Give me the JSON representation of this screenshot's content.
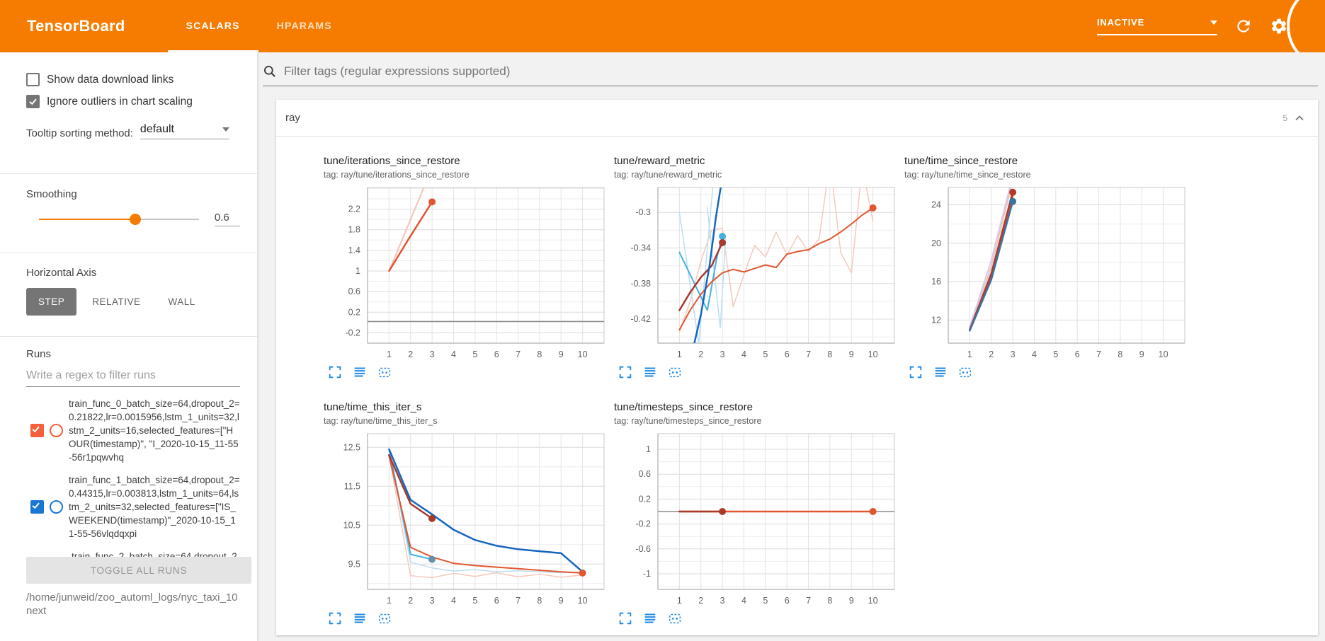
{
  "header": {
    "title": "TensorBoard",
    "tabs": [
      {
        "label": "SCALARS"
      },
      {
        "label": "HPARAMS"
      }
    ],
    "active_tab": "SCALARS",
    "status_dropdown": "INACTIVE"
  },
  "sidebar": {
    "checkboxes": [
      {
        "label": "Show data download links",
        "checked": false
      },
      {
        "label": "Ignore outliers in chart scaling",
        "checked": true
      }
    ],
    "tooltip_sorting_label": "Tooltip sorting method:",
    "tooltip_sorting_value": "default",
    "smoothing_label": "Smoothing",
    "smoothing_value": "0.6",
    "smoothing_percent": 60,
    "horizontal_axis_label": "Horizontal Axis",
    "axis_options": [
      "STEP",
      "RELATIVE",
      "WALL"
    ],
    "axis_selected": "STEP",
    "runs_label": "Runs",
    "runs_filter_placeholder": "Write a regex to filter runs",
    "runs": [
      {
        "name": "train_func_0_batch_size=64,dropout_2=0.21822,lr=0.0015956,lstm_1_units=32,lstm_2_units=16,selected_features=[\"HOUR(timestamp)\", \"I_2020-10-15_11-55-56r1pqwvhq",
        "checked": true,
        "color": "#f4603c",
        "clipped": false
      },
      {
        "name": "train_func_1_batch_size=64,dropout_2=0.44315,lr=0.003813,lstm_1_units=64,lstm_2_units=32,selected_features=[\"IS_WEEKEND(timestamp)\"_2020-10-15_11-55-56vlqdqxpi",
        "checked": true,
        "color": "#1976d2",
        "clipped": false
      },
      {
        "name": "train_func_2_batch_size=64,dropout_2=",
        "checked": true,
        "clipped": true
      }
    ],
    "toggle_all_label": "TOGGLE ALL RUNS",
    "log_path": "/home/junweid/zoo_automl_logs/nyc_taxi_10next"
  },
  "main": {
    "filter_placeholder": "Filter tags (regular expressions supported)",
    "section_name": "ray",
    "section_count": "5"
  },
  "chart_data": [
    {
      "type": "line",
      "title": "tune/iterations_since_restore",
      "tag": "tag: ray/tune/iterations_since_restore",
      "xlim": [
        0,
        11
      ],
      "x_ticks": [
        1,
        2,
        3,
        4,
        5,
        6,
        7,
        8,
        9,
        10
      ],
      "ylim": [
        -0.4,
        2.62
      ],
      "yticks": [
        2.2,
        1.8,
        1.4,
        1,
        0.6,
        0.2,
        -0.2
      ],
      "ytick_labels": [
        "2.2",
        "1.8",
        "1.4",
        "1",
        "0.6",
        "0.2",
        "-0.2"
      ],
      "series": [
        {
          "name": "train_func_0 raw",
          "color": "#f3c3b6",
          "width": 2,
          "points": [
            [
              1,
              1
            ],
            [
              2,
              2
            ],
            [
              3,
              3
            ]
          ]
        },
        {
          "name": "flat baseline",
          "color": "#8a8a8a",
          "width": 1.5,
          "points": [
            [
              0,
              0.02
            ],
            [
              11,
              0.02
            ]
          ]
        },
        {
          "name": "train_func_0 smoothed",
          "color": "#e2552f",
          "width": 2.5,
          "dot": true,
          "points": [
            [
              1,
              1
            ],
            [
              2,
              1.68
            ],
            [
              3,
              2.34
            ]
          ]
        }
      ]
    },
    {
      "type": "line",
      "title": "tune/reward_metric",
      "tag": "tag: ray/tune/reward_metric",
      "xlim": [
        0,
        11
      ],
      "x_ticks": [
        1,
        2,
        3,
        4,
        5,
        6,
        7,
        8,
        9,
        10
      ],
      "ylim": [
        -0.447,
        -0.272
      ],
      "yticks": [
        -0.3,
        -0.34,
        -0.38,
        -0.42
      ],
      "ytick_labels": [
        "-0.3",
        "-0.34",
        "-0.38",
        "-0.42"
      ],
      "series": [
        {
          "name": "raw pink",
          "color": "#f4c9bc",
          "width": 1.5,
          "points": [
            [
              1,
              -0.435
            ],
            [
              1.5,
              -0.4
            ],
            [
              2,
              -0.355
            ],
            [
              2.5,
              -0.32
            ],
            [
              3,
              -0.318
            ],
            [
              3.5,
              -0.406
            ],
            [
              4,
              -0.37
            ],
            [
              4.5,
              -0.337
            ],
            [
              5,
              -0.35
            ],
            [
              5.5,
              -0.322
            ],
            [
              6,
              -0.348
            ],
            [
              6.5,
              -0.326
            ],
            [
              7,
              -0.344
            ],
            [
              7.5,
              -0.33
            ],
            [
              8,
              -0.242
            ],
            [
              8.5,
              -0.345
            ],
            [
              9,
              -0.368
            ],
            [
              9.5,
              -0.248
            ],
            [
              10,
              -0.31
            ]
          ]
        },
        {
          "name": "raw light blue a",
          "color": "#b9def3",
          "width": 1.5,
          "points": [
            [
              1,
              -0.3
            ],
            [
              1.9,
              -0.447
            ],
            [
              2.6,
              -0.26
            ]
          ]
        },
        {
          "name": "raw light blue b",
          "color": "#b9def3",
          "width": 1.5,
          "points": [
            [
              2.3,
              -0.295
            ],
            [
              2.9,
              -0.43
            ],
            [
              3.15,
              -0.33
            ]
          ]
        },
        {
          "name": "cyan",
          "color": "#42b1e0",
          "width": 2,
          "dot": true,
          "points": [
            [
              1,
              -0.345
            ],
            [
              1.9,
              -0.39
            ],
            [
              2.3,
              -0.41
            ],
            [
              2.75,
              -0.35
            ],
            [
              3,
              -0.327
            ]
          ]
        },
        {
          "name": "orange smoothed",
          "color": "#e2552f",
          "width": 2,
          "dot": true,
          "points": [
            [
              1,
              -0.432
            ],
            [
              1.5,
              -0.41
            ],
            [
              2,
              -0.392
            ],
            [
              2.5,
              -0.378
            ],
            [
              3,
              -0.368
            ],
            [
              3.5,
              -0.364
            ],
            [
              4,
              -0.367
            ],
            [
              4.5,
              -0.363
            ],
            [
              5,
              -0.359
            ],
            [
              5.5,
              -0.362
            ],
            [
              6,
              -0.347
            ],
            [
              6.5,
              -0.344
            ],
            [
              7,
              -0.342
            ],
            [
              7.5,
              -0.335
            ],
            [
              8,
              -0.33
            ],
            [
              8.5,
              -0.322
            ],
            [
              9,
              -0.313
            ],
            [
              9.5,
              -0.303
            ],
            [
              10,
              -0.295
            ]
          ]
        },
        {
          "name": "dark red smoothed",
          "color": "#a8392b",
          "width": 2.5,
          "dot": true,
          "points": [
            [
              1,
              -0.41
            ],
            [
              1.5,
              -0.39
            ],
            [
              2,
              -0.373
            ],
            [
              2.5,
              -0.36
            ],
            [
              3,
              -0.334
            ]
          ]
        },
        {
          "name": "blue smoothed",
          "color": "#1565c0",
          "width": 2.5,
          "points": [
            [
              1,
              -0.52
            ],
            [
              2,
              -0.415
            ],
            [
              2.4,
              -0.36
            ],
            [
              2.7,
              -0.305
            ],
            [
              3,
              -0.26
            ]
          ]
        }
      ]
    },
    {
      "type": "line",
      "title": "tune/time_since_restore",
      "tag": "tag: ray/tune/time_since_restore",
      "xlim": [
        0,
        11
      ],
      "x_ticks": [
        1,
        2,
        3,
        4,
        5,
        6,
        7,
        8,
        9,
        10
      ],
      "ylim": [
        9.6,
        25.8
      ],
      "yticks": [
        24,
        20,
        16,
        12
      ],
      "ytick_labels": [
        "24",
        "20",
        "16",
        "12"
      ],
      "series": [
        {
          "name": "raw lavender",
          "color": "#d5cbe9",
          "width": 2,
          "points": [
            [
              1,
              11.3
            ],
            [
              2,
              18.2
            ],
            [
              3,
              27
            ]
          ]
        },
        {
          "name": "raw pink",
          "color": "#f3c3b6",
          "width": 2,
          "points": [
            [
              1,
              11
            ],
            [
              2,
              17.6
            ],
            [
              3,
              26.5
            ]
          ]
        },
        {
          "name": "raw light blue",
          "color": "#bcdcf2",
          "width": 2,
          "points": [
            [
              1,
              11.1
            ],
            [
              2,
              17
            ],
            [
              3,
              25.5
            ]
          ]
        },
        {
          "name": "orange smoothed",
          "color": "#e2552f",
          "width": 2,
          "points": [
            [
              1,
              11.05
            ],
            [
              2,
              16.5
            ],
            [
              3,
              24.9
            ]
          ]
        },
        {
          "name": "dark red smoothed",
          "color": "#b03a2c",
          "width": 2.5,
          "dot": true,
          "points": [
            [
              1,
              11
            ],
            [
              2,
              16.8
            ],
            [
              3,
              25.3
            ]
          ]
        },
        {
          "name": "blue smoothed",
          "color": "#3b729f",
          "width": 2.5,
          "dot": true,
          "points": [
            [
              1,
              10.9
            ],
            [
              2,
              16.2
            ],
            [
              3,
              24.35
            ]
          ]
        }
      ]
    },
    {
      "type": "line",
      "title": "tune/time_this_iter_s",
      "tag": "tag: ray/tune/time_this_iter_s",
      "xlim": [
        0,
        11
      ],
      "x_ticks": [
        1,
        2,
        3,
        4,
        5,
        6,
        7,
        8,
        9,
        10
      ],
      "ylim": [
        8.85,
        12.85
      ],
      "yticks": [
        12.5,
        11.5,
        10.5,
        9.5
      ],
      "ytick_labels": [
        "12.5",
        "11.5",
        "10.5",
        "9.5"
      ],
      "series": [
        {
          "name": "raw pink",
          "color": "#f4c9bc",
          "width": 1.5,
          "points": [
            [
              1,
              12.3
            ],
            [
              2,
              9.2
            ],
            [
              3,
              9.15
            ],
            [
              4,
              9.26
            ],
            [
              5,
              9.18
            ],
            [
              6,
              9.28
            ],
            [
              7,
              9.17
            ],
            [
              8,
              9.24
            ],
            [
              9,
              9.16
            ],
            [
              10,
              9.22
            ]
          ]
        },
        {
          "name": "raw light blue",
          "color": "#bcdcf2",
          "width": 1.5,
          "points": [
            [
              1,
              12.45
            ],
            [
              2,
              9.55
            ],
            [
              3,
              9.4
            ],
            [
              4,
              9.32
            ],
            [
              5,
              9.36
            ],
            [
              6,
              9.3
            ],
            [
              7,
              9.33
            ],
            [
              8,
              9.3
            ],
            [
              9,
              9.28
            ],
            [
              10,
              9.3
            ]
          ]
        },
        {
          "name": "cyan",
          "color": "#42b1e0",
          "width": 2,
          "dot": true,
          "dot_color": "#6590ab",
          "points": [
            [
              1,
              12.45
            ],
            [
              2,
              9.75
            ],
            [
              3,
              9.62
            ]
          ]
        },
        {
          "name": "orange smoothed",
          "color": "#e2552f",
          "width": 2,
          "dot": true,
          "points": [
            [
              1,
              12.28
            ],
            [
              2,
              9.93
            ],
            [
              3,
              9.68
            ],
            [
              4,
              9.52
            ],
            [
              5,
              9.46
            ],
            [
              6,
              9.42
            ],
            [
              7,
              9.38
            ],
            [
              8,
              9.34
            ],
            [
              9,
              9.3
            ],
            [
              10,
              9.27
            ]
          ]
        },
        {
          "name": "dark red smoothed",
          "color": "#a8392b",
          "width": 2.5,
          "dot": true,
          "points": [
            [
              1,
              12.3
            ],
            [
              2,
              11.05
            ],
            [
              3,
              10.67
            ]
          ]
        },
        {
          "name": "blue smoothed",
          "color": "#1565c0",
          "width": 2.5,
          "points": [
            [
              1,
              12.45
            ],
            [
              2,
              11.15
            ],
            [
              3,
              10.78
            ],
            [
              4,
              10.38
            ],
            [
              5,
              10.12
            ],
            [
              6,
              9.97
            ],
            [
              7,
              9.88
            ],
            [
              8,
              9.83
            ],
            [
              9,
              9.78
            ],
            [
              10,
              9.3
            ]
          ]
        }
      ]
    },
    {
      "type": "line",
      "title": "tune/timesteps_since_restore",
      "tag": "tag: ray/tune/timesteps_since_restore",
      "xlim": [
        0,
        11
      ],
      "x_ticks": [
        1,
        2,
        3,
        4,
        5,
        6,
        7,
        8,
        9,
        10
      ],
      "ylim": [
        -1.25,
        1.25
      ],
      "yticks": [
        1,
        0.6,
        0.2,
        -0.2,
        -0.6,
        -1
      ],
      "ytick_labels": [
        "1",
        "0.6",
        "0.2",
        "-0.2",
        "-0.6",
        "-1"
      ],
      "series": [
        {
          "name": "flat baseline",
          "color": "#8a8a8a",
          "width": 1.5,
          "points": [
            [
              0,
              0
            ],
            [
              11,
              0
            ]
          ]
        },
        {
          "name": "orange smoothed",
          "color": "#e2552f",
          "width": 2.5,
          "dot": true,
          "points": [
            [
              1,
              0
            ],
            [
              10,
              0
            ]
          ]
        },
        {
          "name": "dark red smoothed",
          "color": "#a8392b",
          "width": 2.5,
          "dot": true,
          "points": [
            [
              1,
              0
            ],
            [
              3,
              0
            ]
          ]
        }
      ]
    }
  ]
}
